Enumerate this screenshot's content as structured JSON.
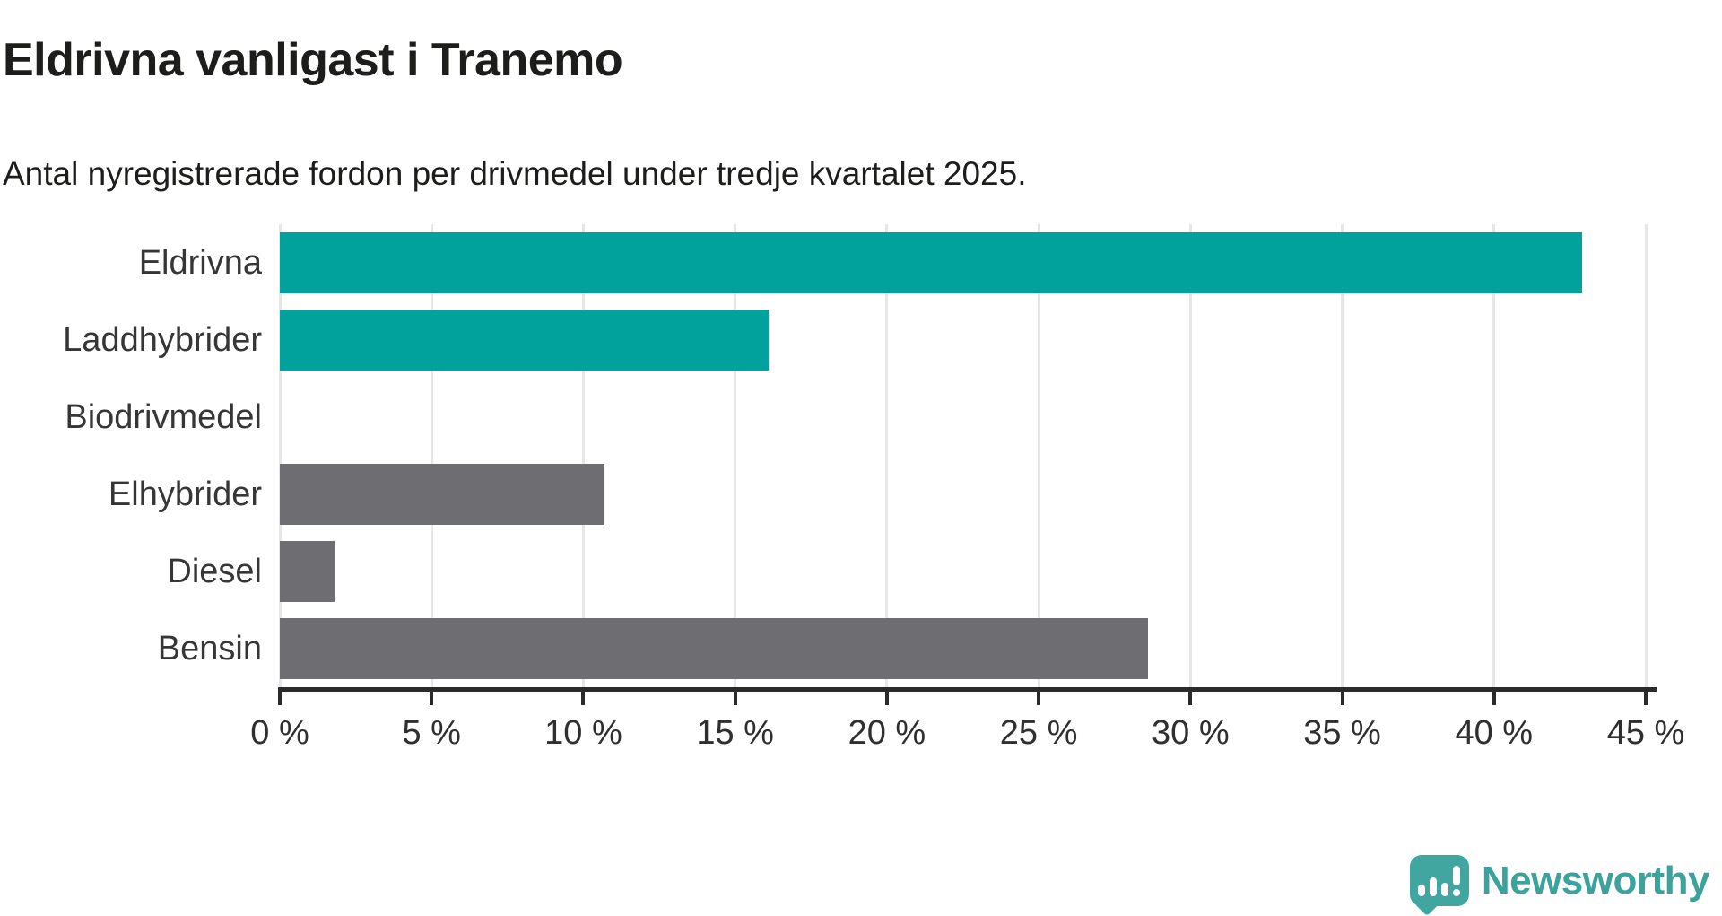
{
  "header": {
    "title": "Eldrivna vanligast i Tranemo",
    "subtitle": "Antal nyregistrerade fordon per drivmedel under tredje kvartalet 2025."
  },
  "chart_data": {
    "type": "bar",
    "orientation": "horizontal",
    "title": "Eldrivna vanligast i Tranemo",
    "subtitle": "Antal nyregistrerade fordon per drivmedel under tredje kvartalet 2025.",
    "categories": [
      "Eldrivna",
      "Laddhybrider",
      "Biodrivmedel",
      "Elhybrider",
      "Diesel",
      "Bensin"
    ],
    "values": [
      42.9,
      16.1,
      0,
      10.7,
      1.8,
      28.6
    ],
    "unit": "%",
    "xlabel": "",
    "ylabel": "",
    "xlim": [
      0,
      45
    ],
    "grid": true,
    "legend": false,
    "ticks": [
      {
        "value": 0,
        "label": "0 %"
      },
      {
        "value": 5,
        "label": "5 %"
      },
      {
        "value": 10,
        "label": "10 %"
      },
      {
        "value": 15,
        "label": "15 %"
      },
      {
        "value": 20,
        "label": "20 %"
      },
      {
        "value": 25,
        "label": "25 %"
      },
      {
        "value": 30,
        "label": "30 %"
      },
      {
        "value": 35,
        "label": "35 %"
      },
      {
        "value": 40,
        "label": "40 %"
      },
      {
        "value": 45,
        "label": "45 %"
      }
    ],
    "bar_colors": [
      "#00a29b",
      "#00a29b",
      "#6d6d72",
      "#6d6d72",
      "#6d6d72",
      "#6d6d72"
    ],
    "colors": {
      "highlight": "#00a29b",
      "default": "#6d6d72",
      "grid": "#e7e7e7",
      "axis": "#2b2b2b",
      "text": "#1d1d1b"
    }
  },
  "footer": {
    "brand": "Newsworthy",
    "brand_color": "#3ba29c",
    "logo_icon": "newsworthy-speech-bubble-chart-icon"
  }
}
